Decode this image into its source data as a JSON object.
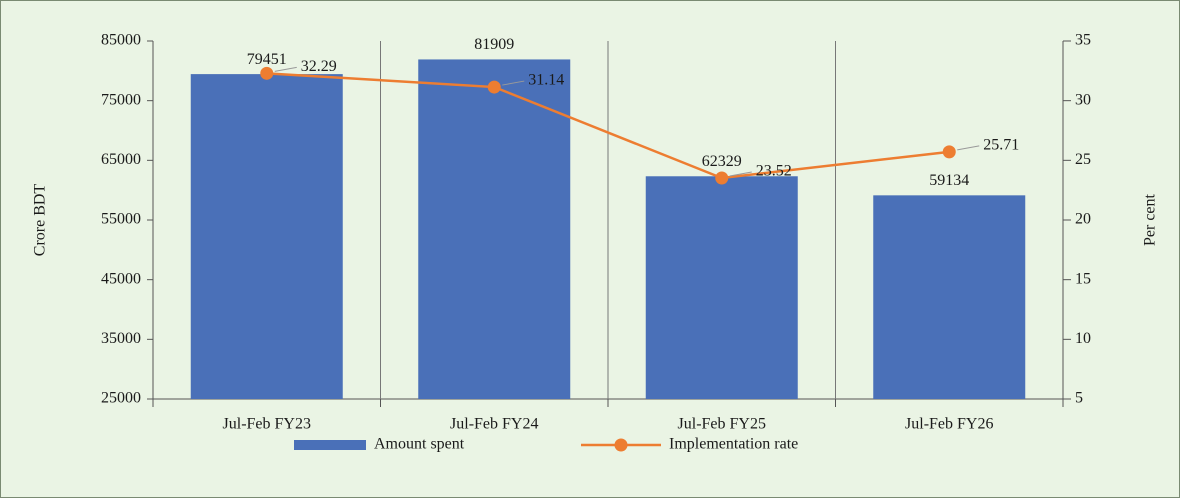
{
  "chart_data": {
    "type": "bar",
    "categories": [
      "Jul-Feb FY23",
      "Jul-Feb FY24",
      "Jul-Feb FY25",
      "Jul-Feb FY26"
    ],
    "y_label": "Crore BDT",
    "y2_label": "Per cent",
    "ylim": [
      25000,
      85000
    ],
    "yticks": [
      25000,
      35000,
      45000,
      55000,
      65000,
      75000,
      85000
    ],
    "y2lim": [
      5,
      35
    ],
    "y2ticks": [
      5,
      10,
      15,
      20,
      25,
      30,
      35
    ],
    "series": [
      {
        "name": "Amount spent",
        "type": "bar",
        "color": "#4a70b8",
        "values": [
          79451,
          81909,
          62329,
          59134
        ]
      },
      {
        "name": "Implementation rate",
        "type": "line",
        "axis": "y2",
        "color": "#ed7d31",
        "values": [
          32.29,
          31.14,
          23.52,
          25.71
        ]
      }
    ],
    "legend": "bottom"
  }
}
